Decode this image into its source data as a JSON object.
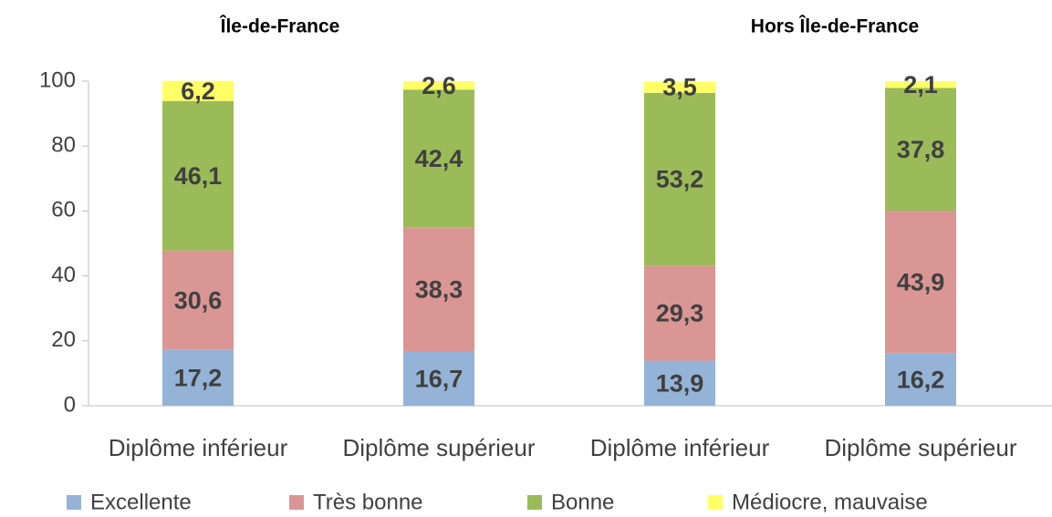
{
  "chart_data": {
    "type": "stacked_bar",
    "annotations": [
      "Île-de-France",
      "Hors Île-de-France"
    ],
    "categories": [
      "Diplôme inférieur",
      "Diplôme supérieur",
      "Diplôme inférieur",
      "Diplôme supérieur"
    ],
    "series": [
      {
        "name": "Excellente",
        "color": "#95b3d7",
        "values": [
          17.2,
          16.7,
          13.9,
          16.2
        ],
        "value_labels": [
          "17,2",
          "16,7",
          "13,9",
          "16,2"
        ]
      },
      {
        "name": "Très bonne",
        "color": "#da9694",
        "values": [
          30.6,
          38.3,
          29.3,
          43.9
        ],
        "value_labels": [
          "30,6",
          "38,3",
          "29,3",
          "43,9"
        ]
      },
      {
        "name": "Bonne",
        "color": "#9bbb59",
        "values": [
          46.1,
          42.4,
          53.2,
          37.8
        ],
        "value_labels": [
          "46,1",
          "42,4",
          "53,2",
          "37,8"
        ]
      },
      {
        "name": "Médiocre, mauvaise",
        "color": "#ffff66",
        "values": [
          6.2,
          2.6,
          3.5,
          2.1
        ],
        "value_labels": [
          "6,2",
          "2,6",
          "3,5",
          "2,1"
        ]
      }
    ],
    "ylim": [
      0,
      100
    ],
    "yticks": [
      0,
      20,
      40,
      60,
      80,
      100
    ],
    "grid": false,
    "legend": "bottom"
  }
}
